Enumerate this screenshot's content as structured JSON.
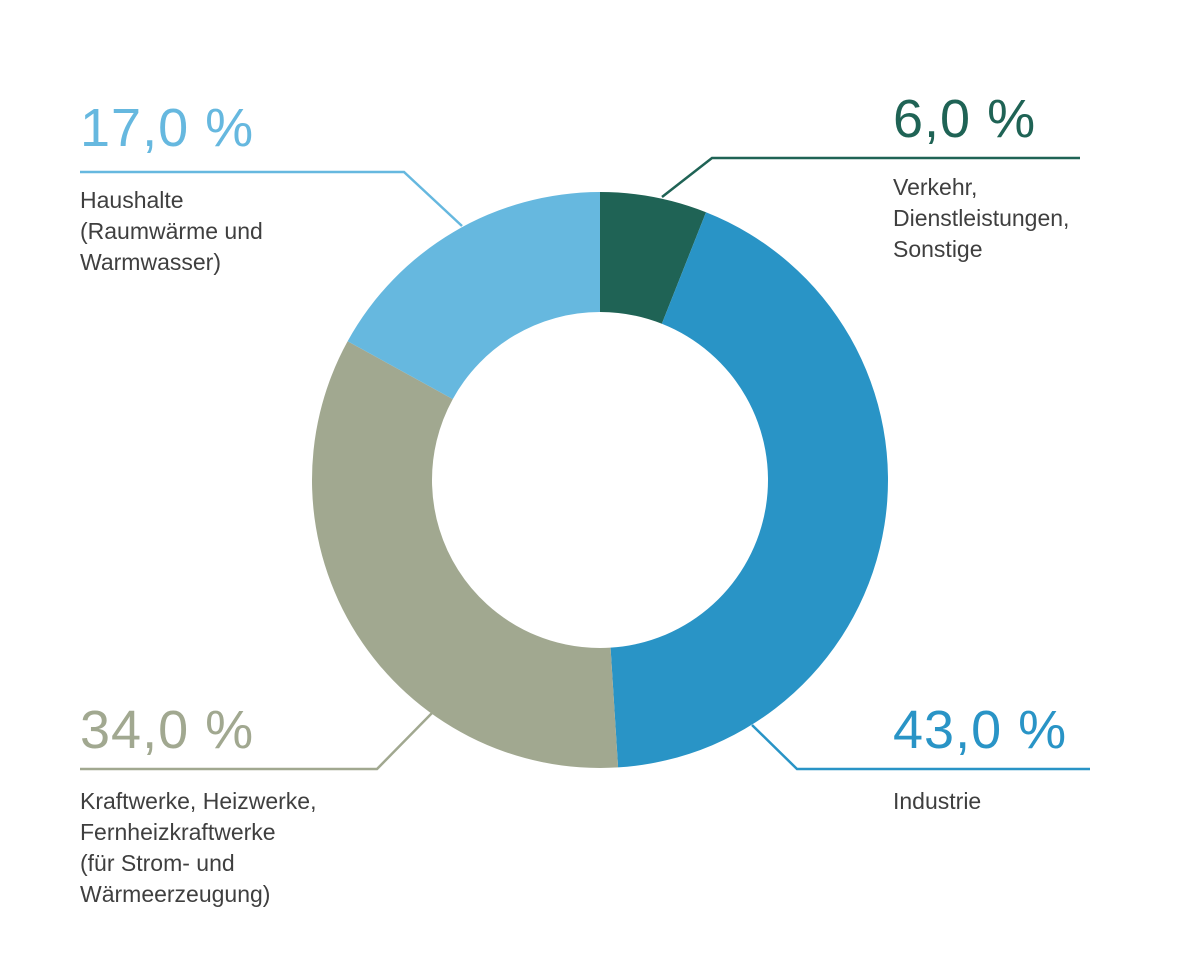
{
  "chart_data": {
    "type": "pie",
    "style": "donut",
    "start_angle_deg": 0,
    "direction": "clockwise",
    "slices": [
      {
        "label": "Verkehr,\nDienstleistungen,\nSonstige",
        "value": 6.0,
        "value_label": "6,0 %",
        "color": "#1f6355"
      },
      {
        "label": "Industrie",
        "value": 43.0,
        "value_label": "43,0 %",
        "color": "#2994c6"
      },
      {
        "label": "Kraftwerke, Heizwerke,\nFernheizkraftwerke\n(für Strom- und\nWärmeerzeugung)",
        "value": 34.0,
        "value_label": "34,0 %",
        "color": "#a1a890"
      },
      {
        "label": "Haushalte\n(Raumwärme und\nWarmwasser)",
        "value": 17.0,
        "value_label": "17,0 %",
        "color": "#66b8df"
      }
    ]
  }
}
